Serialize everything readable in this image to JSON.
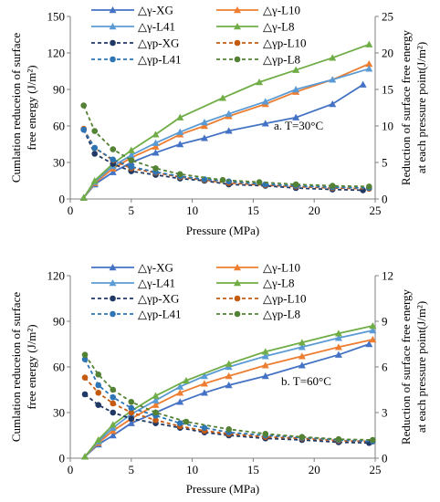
{
  "chart_data": [
    {
      "type": "line",
      "annotation": "a. T=30°C",
      "xlabel": "Pressure (MPa)",
      "ylabel_left": [
        "Cumlation reduceion of surface",
        "free energy (J/m²)"
      ],
      "ylabel_right": [
        "Reduction of surface free energy",
        "at each pressure point(J/m²)"
      ],
      "xlim": [
        0,
        25
      ],
      "xticks": [
        0,
        5,
        10,
        15,
        20,
        25
      ],
      "ylim_left": [
        0,
        150
      ],
      "yticks_left": [
        0,
        30,
        60,
        90,
        120,
        150
      ],
      "ylim_right": [
        0,
        25
      ],
      "yticks_right": [
        0,
        5,
        10,
        15,
        20,
        25
      ],
      "legend_position": "top",
      "grid": false,
      "series": [
        {
          "name": "△γ-XG",
          "axis": "left",
          "style": "solid",
          "marker": "triangle",
          "color": "#4472C4",
          "x": [
            1.1,
            2.0,
            3.5,
            5.0,
            7.0,
            9.0,
            11.0,
            13.0,
            16.0,
            18.5,
            21.5,
            24.0
          ],
          "y": [
            1,
            12,
            22,
            30,
            38,
            45,
            50,
            56,
            62,
            67,
            78,
            94
          ]
        },
        {
          "name": "△γ-L10",
          "axis": "left",
          "style": "solid",
          "marker": "triangle",
          "color": "#ED7D31",
          "x": [
            1.1,
            2.0,
            3.5,
            5.0,
            7.0,
            9.0,
            11.0,
            13.0,
            16.0,
            18.5,
            21.5,
            24.5
          ],
          "y": [
            1,
            13,
            25,
            34,
            43,
            53,
            60,
            68,
            78,
            88,
            98,
            111
          ]
        },
        {
          "name": "△γ-L41",
          "axis": "left",
          "style": "solid",
          "marker": "triangle",
          "color": "#5B9BD5",
          "x": [
            1.1,
            2.0,
            3.5,
            5.0,
            7.0,
            9.0,
            11.0,
            13.0,
            16.0,
            18.5,
            21.5,
            24.5
          ],
          "y": [
            1,
            14,
            27,
            36,
            46,
            55,
            63,
            70,
            80,
            90,
            98,
            107
          ]
        },
        {
          "name": "△γ-L8",
          "axis": "left",
          "style": "solid",
          "marker": "triangle",
          "color": "#70AD47",
          "x": [
            1.1,
            2.0,
            3.5,
            5.0,
            7.0,
            9.0,
            12.5,
            15.5,
            18.5,
            21.5,
            24.5
          ],
          "y": [
            1,
            15,
            29,
            40,
            53,
            67,
            83,
            96,
            106,
            116,
            127
          ]
        },
        {
          "name": "△γp-XG",
          "axis": "right",
          "style": "dashed",
          "marker": "circle",
          "color": "#203864",
          "x": [
            1.1,
            2.0,
            3.5,
            5.0,
            7.0,
            9.0,
            11.0,
            13.0,
            16.0,
            18.5,
            21.5,
            24.0
          ],
          "y": [
            9.5,
            6.2,
            4.8,
            3.8,
            3.3,
            2.8,
            2.5,
            2.0,
            1.8,
            1.5,
            1.3,
            1.2
          ]
        },
        {
          "name": "△γp-L10",
          "axis": "right",
          "style": "dashed",
          "marker": "circle",
          "color": "#C55A11",
          "x": [
            1.1,
            2.0,
            3.5,
            5.0,
            7.0,
            9.0,
            11.0,
            13.0,
            16.0,
            18.5,
            21.5,
            24.5
          ],
          "y": [
            9.6,
            7.0,
            5.3,
            4.2,
            3.6,
            3.0,
            2.6,
            2.2,
            1.9,
            1.7,
            1.5,
            1.4
          ]
        },
        {
          "name": "△γp-L41",
          "axis": "right",
          "style": "dashed",
          "marker": "circle",
          "color": "#2E75B6",
          "x": [
            1.1,
            2.0,
            3.5,
            5.0,
            7.0,
            9.0,
            11.0,
            13.0,
            16.0,
            18.5,
            21.5,
            24.5
          ],
          "y": [
            9.5,
            7.0,
            5.4,
            4.4,
            3.7,
            3.1,
            2.7,
            2.4,
            2.0,
            1.8,
            1.6,
            1.5
          ]
        },
        {
          "name": "△γp-L8",
          "axis": "right",
          "style": "dashed",
          "marker": "circle",
          "color": "#548235",
          "x": [
            1.1,
            2.0,
            3.5,
            5.0,
            7.0,
            9.0,
            12.5,
            15.5,
            18.5,
            21.5,
            24.5
          ],
          "y": [
            12.8,
            9.3,
            6.8,
            5.3,
            4.2,
            3.4,
            2.6,
            2.3,
            2.0,
            1.8,
            1.7
          ]
        }
      ]
    },
    {
      "type": "line",
      "annotation": "b. T=60°C",
      "xlabel": "Pressure (MPa)",
      "ylabel_left": [
        "Cumlation reduceion of surface",
        "free energy (J/m²)"
      ],
      "ylabel_right": [
        "Reduction of surface free energy",
        "at each pressure point(J/m²)"
      ],
      "xlim": [
        0,
        25
      ],
      "xticks": [
        0,
        5,
        10,
        15,
        20,
        25
      ],
      "ylim_left": [
        0,
        120
      ],
      "yticks_left": [
        0,
        30,
        60,
        90,
        120
      ],
      "ylim_right": [
        0,
        12
      ],
      "yticks_right": [
        0,
        3,
        6,
        9,
        12
      ],
      "legend_position": "top",
      "grid": false,
      "series": [
        {
          "name": "△γ-XG",
          "axis": "left",
          "style": "solid",
          "marker": "triangle",
          "color": "#4472C4",
          "x": [
            1.2,
            2.3,
            3.5,
            5.0,
            7.0,
            9.0,
            11.0,
            13.0,
            16.0,
            19.0,
            22.0,
            24.5
          ],
          "y": [
            1,
            9,
            15,
            23,
            30,
            37,
            43,
            48,
            54,
            61,
            68,
            75
          ]
        },
        {
          "name": "△γ-L10",
          "axis": "left",
          "style": "solid",
          "marker": "triangle",
          "color": "#ED7D31",
          "x": [
            1.2,
            2.3,
            3.5,
            5.0,
            7.0,
            9.0,
            11.0,
            13.0,
            16.0,
            19.0,
            22.0,
            24.8
          ],
          "y": [
            1,
            10,
            18,
            26,
            35,
            43,
            49,
            54,
            61,
            67,
            73,
            78
          ]
        },
        {
          "name": "△γ-L41",
          "axis": "left",
          "style": "solid",
          "marker": "triangle",
          "color": "#5B9BD5",
          "x": [
            1.2,
            2.3,
            3.5,
            5.0,
            7.0,
            9.0,
            11.0,
            13.0,
            16.0,
            19.0,
            22.0,
            24.8
          ],
          "y": [
            1,
            11,
            20,
            29,
            38,
            47,
            54,
            60,
            67,
            73,
            79,
            84
          ]
        },
        {
          "name": "△γ-L8",
          "axis": "left",
          "style": "solid",
          "marker": "triangle",
          "color": "#70AD47",
          "x": [
            1.2,
            2.3,
            3.5,
            5.0,
            7.0,
            9.5,
            13.0,
            16.0,
            19.0,
            22.0,
            24.8
          ],
          "y": [
            1,
            12,
            22,
            31,
            41,
            51,
            62,
            70,
            76,
            82,
            87
          ]
        },
        {
          "name": "△γp-XG",
          "axis": "right",
          "style": "dashed",
          "marker": "circle",
          "color": "#203864",
          "x": [
            1.2,
            2.3,
            3.5,
            5.0,
            7.0,
            9.0,
            11.0,
            13.0,
            16.0,
            19.0,
            22.0,
            24.5
          ],
          "y": [
            4.2,
            3.5,
            3.0,
            2.6,
            2.3,
            2.0,
            1.7,
            1.5,
            1.3,
            1.2,
            1.05,
            1.0
          ]
        },
        {
          "name": "△γp-L10",
          "axis": "right",
          "style": "dashed",
          "marker": "circle",
          "color": "#C55A11",
          "x": [
            1.2,
            2.3,
            3.5,
            5.0,
            7.0,
            9.0,
            11.0,
            13.0,
            16.0,
            19.0,
            22.0,
            24.8
          ],
          "y": [
            5.3,
            4.3,
            3.6,
            3.0,
            2.5,
            2.1,
            1.8,
            1.6,
            1.4,
            1.3,
            1.15,
            1.1
          ]
        },
        {
          "name": "△γp-L41",
          "axis": "right",
          "style": "dashed",
          "marker": "circle",
          "color": "#2E75B6",
          "x": [
            1.2,
            2.3,
            3.5,
            5.0,
            7.0,
            9.0,
            11.0,
            13.0,
            16.0,
            19.0,
            22.0,
            24.8
          ],
          "y": [
            6.5,
            4.8,
            4.0,
            3.3,
            2.8,
            2.3,
            2.0,
            1.7,
            1.5,
            1.35,
            1.2,
            1.1
          ]
        },
        {
          "name": "△γp-L8",
          "axis": "right",
          "style": "dashed",
          "marker": "circle",
          "color": "#548235",
          "x": [
            1.2,
            2.3,
            3.5,
            5.0,
            7.0,
            9.5,
            13.0,
            16.0,
            19.0,
            22.0,
            24.8
          ],
          "y": [
            6.8,
            5.5,
            4.5,
            3.7,
            3.0,
            2.4,
            1.9,
            1.6,
            1.4,
            1.25,
            1.2
          ]
        }
      ]
    }
  ]
}
